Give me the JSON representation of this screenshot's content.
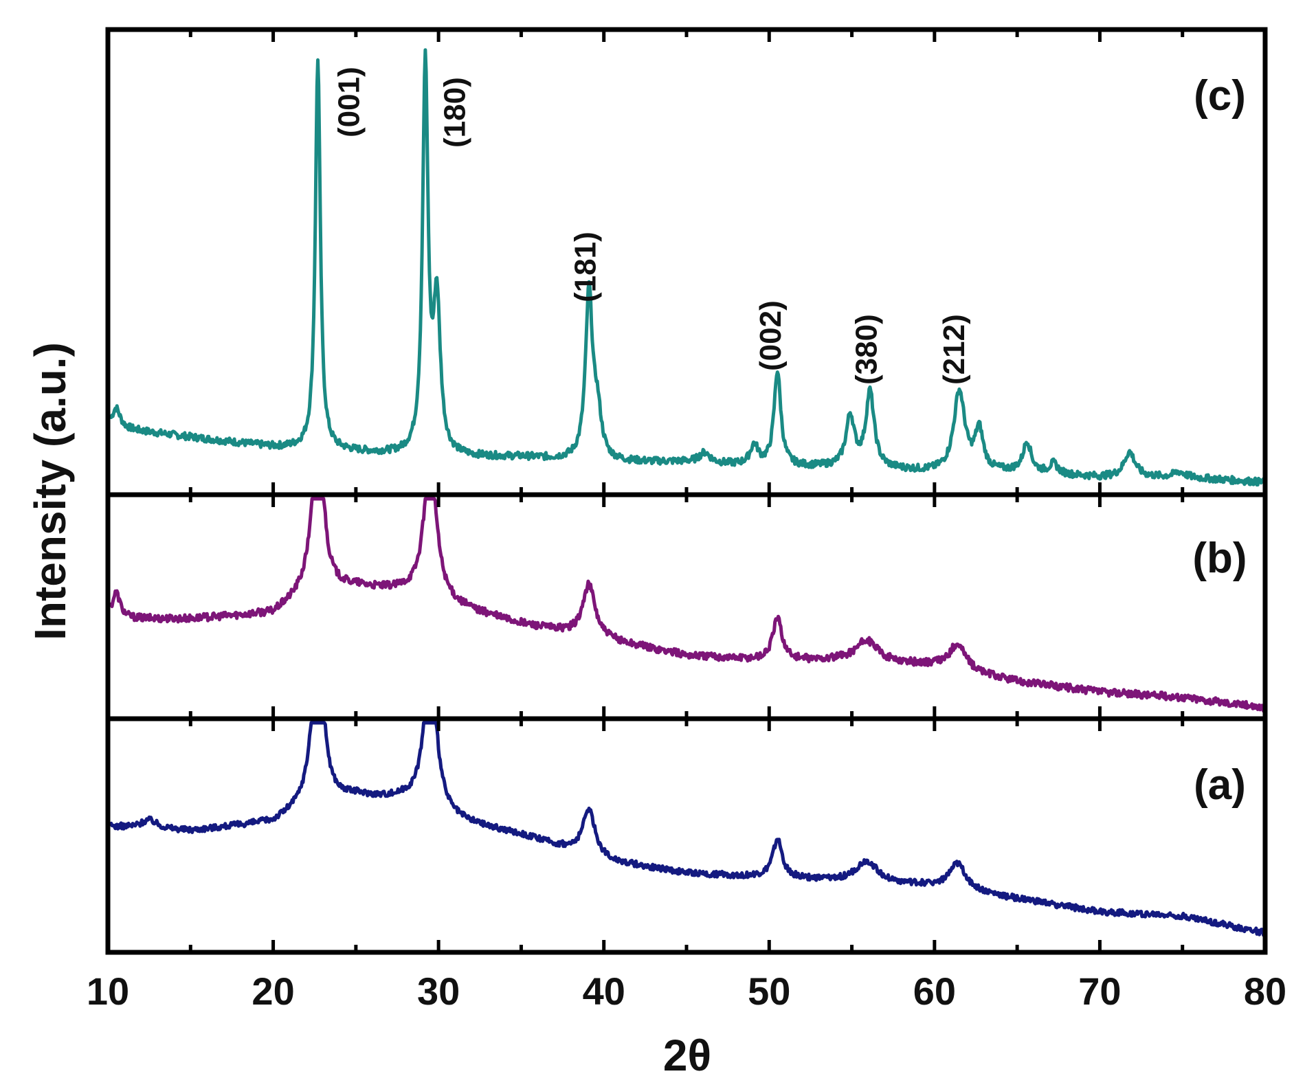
{
  "chart_data": {
    "type": "line",
    "title": "",
    "xlabel": "2θ",
    "ylabel": "Intensity (a.u.)",
    "xlim": [
      10,
      80
    ],
    "x_ticks": [
      10,
      20,
      30,
      40,
      50,
      60,
      70,
      80
    ],
    "x_tick_labels": [
      "10",
      "20",
      "30",
      "40",
      "50",
      "60",
      "70",
      "80"
    ],
    "ylim": [
      0,
      100
    ],
    "grid": false,
    "legend": "none",
    "series": [
      {
        "name": "(c)",
        "color": "#1a8a84",
        "baseline": [
          [
            10,
            11
          ],
          [
            15,
            9
          ],
          [
            20,
            7
          ],
          [
            25,
            6
          ],
          [
            30,
            5
          ],
          [
            35,
            5
          ],
          [
            40,
            4
          ],
          [
            45,
            4
          ],
          [
            50,
            3
          ],
          [
            55,
            3
          ],
          [
            60,
            2
          ],
          [
            65,
            2
          ],
          [
            70,
            1
          ],
          [
            75,
            1
          ],
          [
            80,
            0
          ]
        ],
        "peaks": [
          {
            "x": 10.5,
            "h": 4,
            "w": 0.3
          },
          {
            "x": 22.7,
            "h": 78,
            "w": 0.18
          },
          {
            "x": 29.2,
            "h": 77,
            "w": 0.2
          },
          {
            "x": 29.9,
            "h": 30,
            "w": 0.25
          },
          {
            "x": 39.1,
            "h": 33,
            "w": 0.25
          },
          {
            "x": 39.6,
            "h": 9,
            "w": 0.3
          },
          {
            "x": 46.1,
            "h": 2,
            "w": 0.4
          },
          {
            "x": 49.1,
            "h": 4,
            "w": 0.3
          },
          {
            "x": 50.5,
            "h": 19,
            "w": 0.25
          },
          {
            "x": 54.9,
            "h": 10,
            "w": 0.3
          },
          {
            "x": 56.1,
            "h": 15,
            "w": 0.3
          },
          {
            "x": 61.5,
            "h": 16,
            "w": 0.4
          },
          {
            "x": 62.7,
            "h": 8,
            "w": 0.3
          },
          {
            "x": 65.6,
            "h": 6,
            "w": 0.3
          },
          {
            "x": 67.2,
            "h": 2,
            "w": 0.3
          },
          {
            "x": 71.8,
            "h": 5,
            "w": 0.4
          },
          {
            "x": 74.8,
            "h": 1,
            "w": 0.4
          }
        ]
      },
      {
        "name": "(b)",
        "color": "#7d1578",
        "baseline": [
          [
            10,
            17
          ],
          [
            15,
            17
          ],
          [
            20,
            18
          ],
          [
            22,
            22
          ],
          [
            25,
            23
          ],
          [
            28,
            22
          ],
          [
            30,
            20
          ],
          [
            35,
            16
          ],
          [
            40,
            13
          ],
          [
            45,
            10
          ],
          [
            50,
            9
          ],
          [
            55,
            9
          ],
          [
            60,
            8
          ],
          [
            65,
            5
          ],
          [
            70,
            3
          ],
          [
            75,
            2
          ],
          [
            80,
            0
          ]
        ],
        "peaks": [
          {
            "x": 10.5,
            "h": 5,
            "w": 0.3
          },
          {
            "x": 22.7,
            "h": 38,
            "w": 0.35
          },
          {
            "x": 29.5,
            "h": 28,
            "w": 0.45
          },
          {
            "x": 39.1,
            "h": 10,
            "w": 0.45
          },
          {
            "x": 50.5,
            "h": 8,
            "w": 0.35
          },
          {
            "x": 55.9,
            "h": 4,
            "w": 0.8
          },
          {
            "x": 61.4,
            "h": 5,
            "w": 0.6
          }
        ]
      },
      {
        "name": "(a)",
        "color": "#141a80",
        "baseline": [
          [
            10,
            25
          ],
          [
            15,
            24
          ],
          [
            20,
            26
          ],
          [
            22,
            30
          ],
          [
            25,
            32
          ],
          [
            28,
            31
          ],
          [
            30,
            27
          ],
          [
            35,
            23
          ],
          [
            40,
            17
          ],
          [
            45,
            14
          ],
          [
            50,
            13
          ],
          [
            55,
            12
          ],
          [
            60,
            11
          ],
          [
            65,
            8
          ],
          [
            70,
            5
          ],
          [
            75,
            4
          ],
          [
            80,
            0
          ]
        ],
        "peaks": [
          {
            "x": 12.5,
            "h": 2,
            "w": 0.6
          },
          {
            "x": 22.7,
            "h": 48,
            "w": 0.35
          },
          {
            "x": 29.5,
            "h": 37,
            "w": 0.45
          },
          {
            "x": 39.1,
            "h": 11,
            "w": 0.45
          },
          {
            "x": 50.5,
            "h": 9,
            "w": 0.35
          },
          {
            "x": 55.9,
            "h": 5,
            "w": 0.8
          },
          {
            "x": 61.4,
            "h": 6,
            "w": 0.6
          }
        ]
      }
    ],
    "panel_labels": [
      "(c)",
      "(b)",
      "(a)"
    ],
    "annotations": [
      {
        "text": "(001)",
        "x": 25.2
      },
      {
        "text": "(180)",
        "x": 31.6
      },
      {
        "text": "(181)",
        "x": 39.5
      },
      {
        "text": "(002)",
        "x": 50.7
      },
      {
        "text": "(380)",
        "x": 56.5
      },
      {
        "text": "(212)",
        "x": 61.8
      }
    ]
  }
}
